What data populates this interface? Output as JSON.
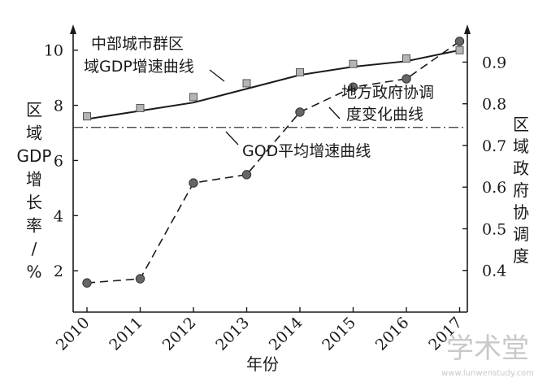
{
  "chart_data": {
    "type": "line",
    "categories": [
      "2010",
      "2011",
      "2012",
      "2013",
      "2014",
      "2015",
      "2016",
      "2017"
    ],
    "xlabel": "年份",
    "y_left": {
      "label": "区域GDP增长率/%",
      "ylim": [
        0.5,
        10.7
      ],
      "ticks": [
        "2",
        "4",
        "6",
        "8",
        "10"
      ]
    },
    "y_right": {
      "label": "区域政府协调度",
      "ylim": [
        0.3,
        0.975
      ],
      "ticks": [
        "0.4",
        "0.5",
        "0.6",
        "0.7",
        "0.8",
        "0.9"
      ]
    },
    "series": [
      {
        "name": "中部城市群区域GDP增速曲线",
        "axis": "left",
        "style": "solid",
        "marker": "square",
        "line_values": [
          7.5,
          7.8,
          8.1,
          8.6,
          9.1,
          9.4,
          9.6,
          10.0
        ],
        "marker_values": [
          7.6,
          7.9,
          8.3,
          8.8,
          9.2,
          9.5,
          9.7,
          10.0
        ]
      },
      {
        "name": "地方政府协调度变化曲线",
        "axis": "right",
        "style": "dashed",
        "marker": "circle",
        "values": [
          0.37,
          0.38,
          0.61,
          0.63,
          0.78,
          0.84,
          0.86,
          0.95
        ]
      },
      {
        "name": "GOD平均增速曲线",
        "axis": "left",
        "style": "dash-dot",
        "constant": 7.2
      }
    ],
    "annotations": {
      "gdp_curve": [
        "中部城市群区",
        "域GDP增速曲线"
      ],
      "coord_curve": [
        "地方政府协调",
        "度变化曲线"
      ],
      "avg_curve": "GOD平均增速曲线"
    },
    "grid": false,
    "legend": "none"
  },
  "watermark": {
    "text": "学术堂",
    "subtext": "www.lunwenstudy.com"
  }
}
